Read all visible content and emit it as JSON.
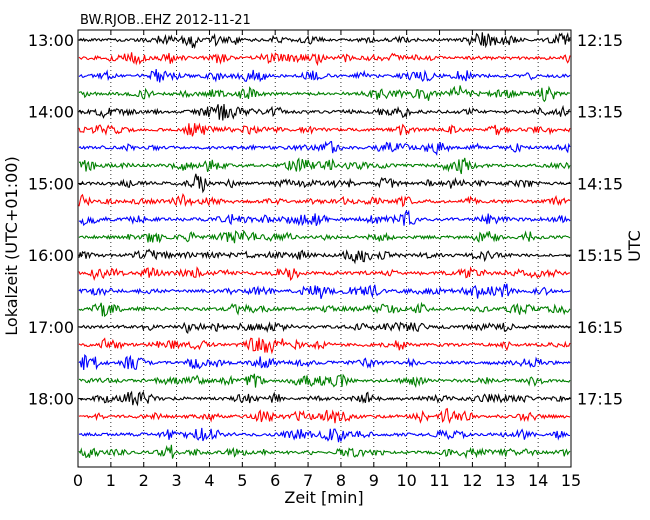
{
  "chart_data": {
    "type": "line",
    "title": "BW.RJOB..EHZ 2012-11-21",
    "xlabel": "Zeit  [min]",
    "ylabel_left": "Lokalzeit (UTC+01:00)",
    "ylabel_right": "UTC",
    "xlim": [
      0,
      15
    ],
    "x_ticks": [
      0,
      1,
      2,
      3,
      4,
      5,
      6,
      7,
      8,
      9,
      10,
      11,
      12,
      13,
      14,
      15
    ],
    "grid_x": true,
    "trace_interval_min": 15,
    "trace_colors": [
      "#000000",
      "#ff0000",
      "#0000ff",
      "#008000"
    ],
    "local_time_labels": [
      "13:00",
      "14:00",
      "15:00",
      "16:00",
      "17:00",
      "18:00"
    ],
    "utc_time_labels": [
      "12:15",
      "13:15",
      "14:15",
      "15:15",
      "16:15",
      "17:15"
    ],
    "series": [
      {
        "local_start": "13:00",
        "color": "#000000"
      },
      {
        "local_start": "13:15",
        "color": "#ff0000"
      },
      {
        "local_start": "13:30",
        "color": "#0000ff"
      },
      {
        "local_start": "13:45",
        "color": "#008000"
      },
      {
        "local_start": "14:00",
        "color": "#000000"
      },
      {
        "local_start": "14:15",
        "color": "#ff0000"
      },
      {
        "local_start": "14:30",
        "color": "#0000ff"
      },
      {
        "local_start": "14:45",
        "color": "#008000"
      },
      {
        "local_start": "15:00",
        "color": "#000000"
      },
      {
        "local_start": "15:15",
        "color": "#ff0000"
      },
      {
        "local_start": "15:30",
        "color": "#0000ff"
      },
      {
        "local_start": "15:45",
        "color": "#008000"
      },
      {
        "local_start": "16:00",
        "color": "#000000"
      },
      {
        "local_start": "16:15",
        "color": "#ff0000"
      },
      {
        "local_start": "16:30",
        "color": "#0000ff"
      },
      {
        "local_start": "16:45",
        "color": "#008000"
      },
      {
        "local_start": "17:00",
        "color": "#000000"
      },
      {
        "local_start": "17:15",
        "color": "#ff0000"
      },
      {
        "local_start": "17:30",
        "color": "#0000ff"
      },
      {
        "local_start": "17:45",
        "color": "#008000"
      },
      {
        "local_start": "18:00",
        "color": "#000000"
      },
      {
        "local_start": "18:15",
        "color": "#ff0000"
      },
      {
        "local_start": "18:30",
        "color": "#0000ff"
      },
      {
        "local_start": "18:45",
        "color": "#008000"
      }
    ]
  }
}
